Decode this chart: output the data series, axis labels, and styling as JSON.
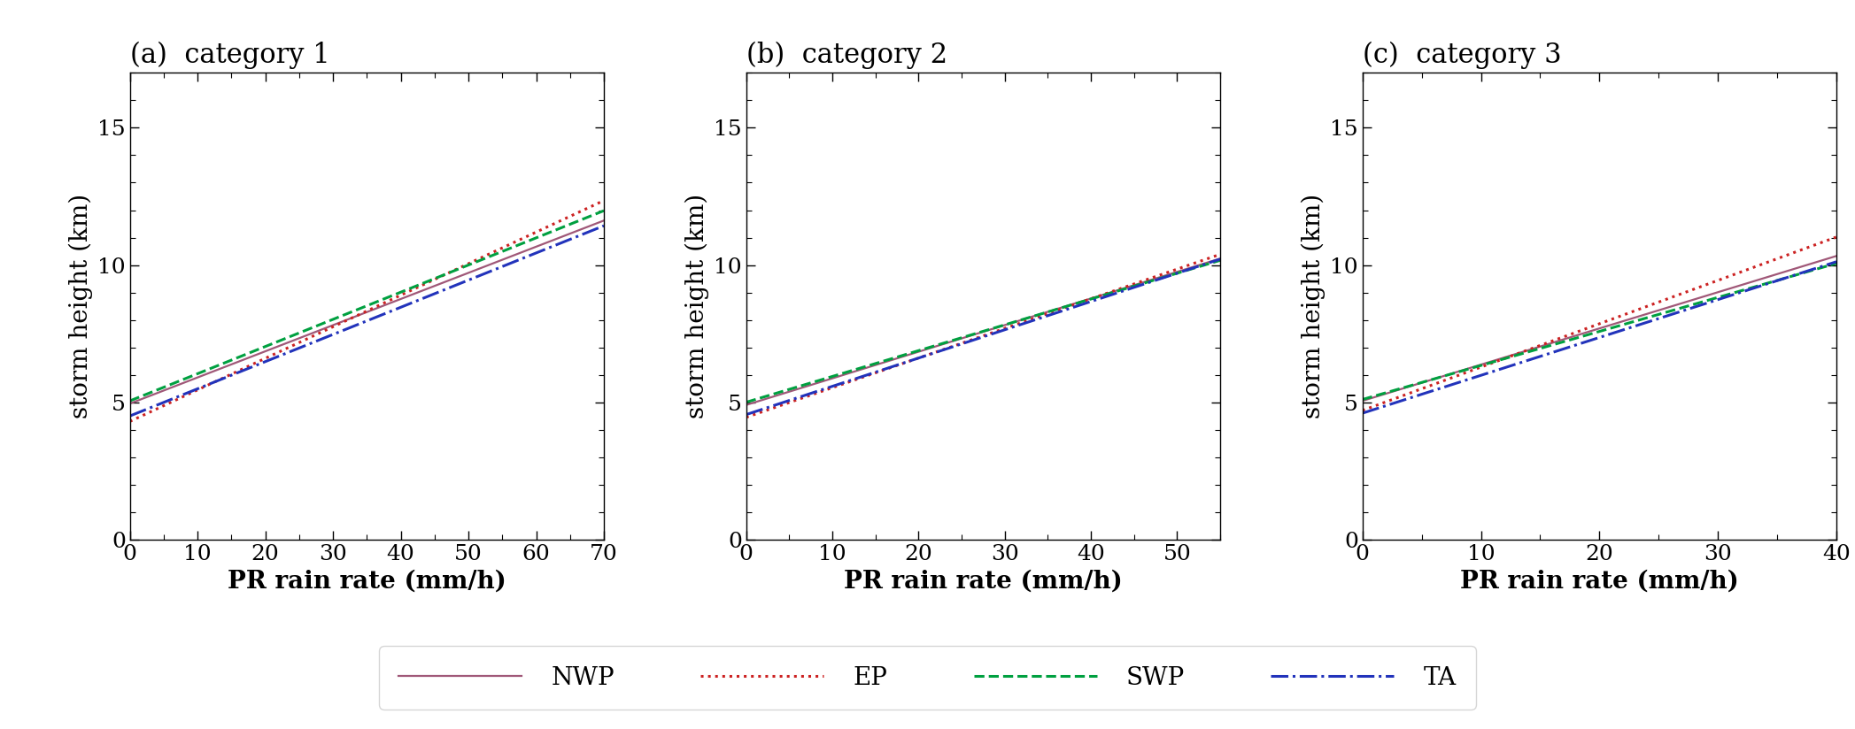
{
  "panels": [
    {
      "label": "(a)  category 1",
      "xlim": [
        0,
        70
      ],
      "xticks": [
        0,
        10,
        20,
        30,
        40,
        50,
        60,
        70
      ],
      "x_minor": 5,
      "lines": {
        "NWP": {
          "intercept": 4.95,
          "slope": 0.0953
        },
        "EP": {
          "intercept": 4.3,
          "slope": 0.115
        },
        "SWP": {
          "intercept": 5.05,
          "slope": 0.099
        },
        "TA": {
          "intercept": 4.5,
          "slope": 0.099
        }
      }
    },
    {
      "label": "(b)  category 2",
      "xlim": [
        0,
        55
      ],
      "xticks": [
        0,
        10,
        20,
        30,
        40,
        50
      ],
      "x_minor": 5,
      "lines": {
        "NWP": {
          "intercept": 4.9,
          "slope": 0.097
        },
        "EP": {
          "intercept": 4.45,
          "slope": 0.108
        },
        "SWP": {
          "intercept": 5.0,
          "slope": 0.094
        },
        "TA": {
          "intercept": 4.55,
          "slope": 0.103
        }
      }
    },
    {
      "label": "(c)  category 3",
      "xlim": [
        0,
        40
      ],
      "xticks": [
        0,
        10,
        20,
        30,
        40
      ],
      "x_minor": 5,
      "lines": {
        "NWP": {
          "intercept": 5.05,
          "slope": 0.132
        },
        "EP": {
          "intercept": 4.7,
          "slope": 0.158
        },
        "SWP": {
          "intercept": 5.1,
          "slope": 0.124
        },
        "TA": {
          "intercept": 4.6,
          "slope": 0.138
        }
      }
    }
  ],
  "ylim": [
    0,
    17
  ],
  "ytick_major": [
    0,
    5,
    10,
    15
  ],
  "y_minor": 1,
  "ylabel": "storm height (km)",
  "xlabel": "PR rain rate (mm/h)",
  "line_styles": {
    "NWP": {
      "color": "#a05878",
      "linestyle": "-",
      "linewidth": 1.6
    },
    "EP": {
      "color": "#cc2222",
      "linestyle": ":",
      "linewidth": 2.2
    },
    "SWP": {
      "color": "#00a040",
      "linestyle": "--",
      "linewidth": 2.2
    },
    "TA": {
      "color": "#2233bb",
      "linestyle": "-.",
      "linewidth": 2.2
    }
  },
  "legend_labels": [
    "NWP",
    "EP",
    "SWP",
    "TA"
  ],
  "title_fontsize": 22,
  "label_fontsize": 20,
  "tick_fontsize": 18,
  "legend_fontsize": 20,
  "font_family": "serif"
}
